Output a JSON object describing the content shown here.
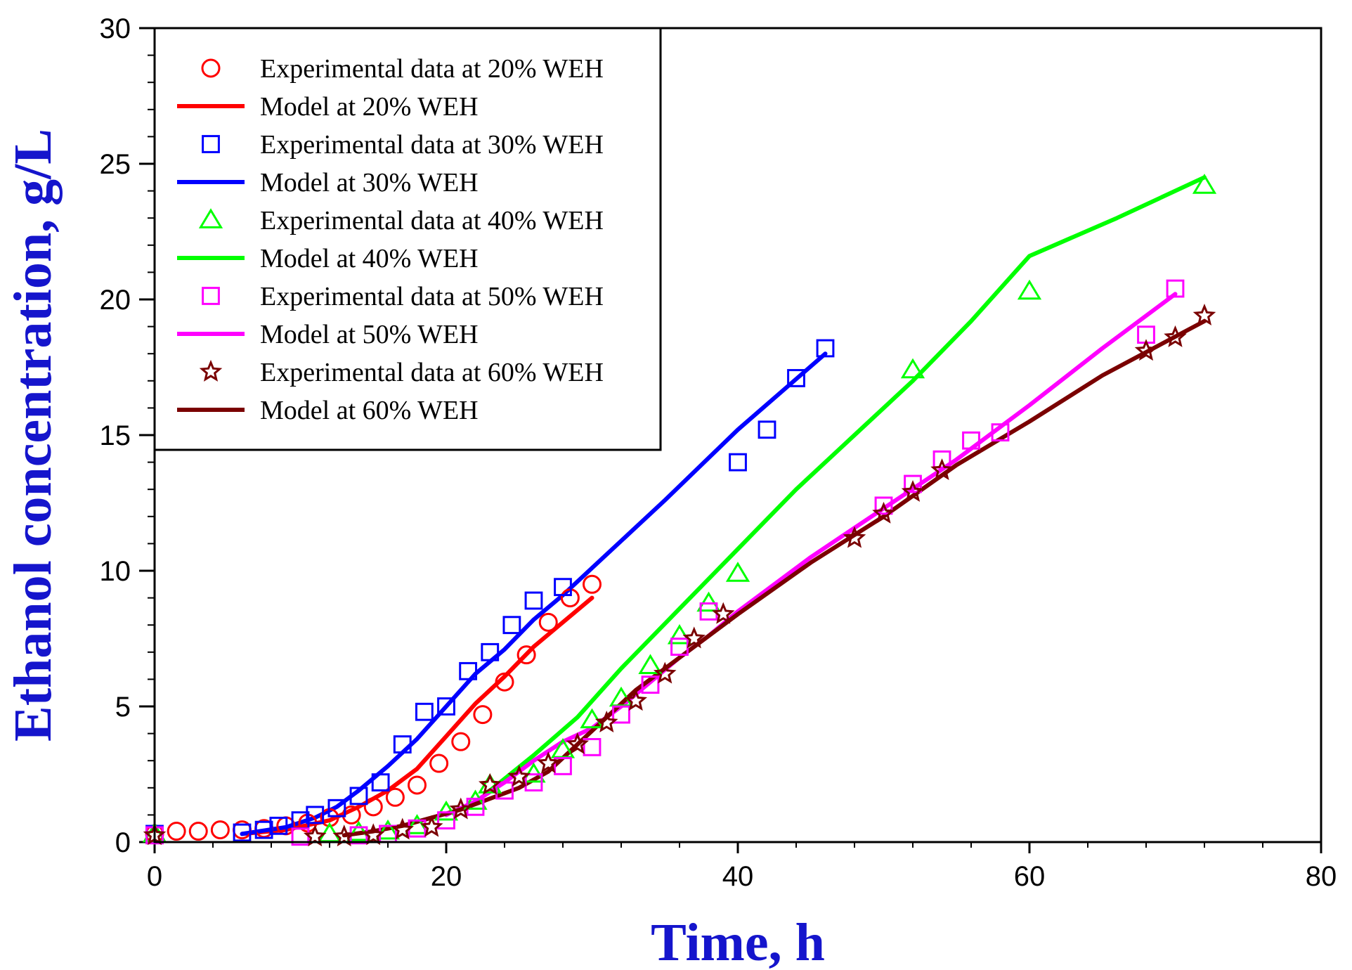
{
  "chart_data": {
    "type": "scatter",
    "title": "",
    "xlabel": "Time, h",
    "ylabel": "Ethanol concentration, g/L",
    "xlim": [
      0,
      80
    ],
    "ylim": [
      0,
      30
    ],
    "xticks": [
      0,
      20,
      40,
      60,
      80
    ],
    "yticks": [
      0,
      5,
      10,
      15,
      20,
      25,
      30
    ],
    "x_tick_labels": [
      "0",
      "20",
      "40",
      "60",
      "80"
    ],
    "y_tick_labels": [
      "0",
      "5",
      "10",
      "15",
      "20",
      "25",
      "30"
    ],
    "axis_title_color": "#1515cc",
    "legend_position": "top-left",
    "series": [
      {
        "name": "Experimental data at 20% WEH",
        "kind": "scatter",
        "marker": "circle",
        "color": "#ff0000",
        "points": [
          [
            0,
            0.3
          ],
          [
            1.5,
            0.4
          ],
          [
            3,
            0.4
          ],
          [
            4.5,
            0.45
          ],
          [
            6,
            0.45
          ],
          [
            7.5,
            0.5
          ],
          [
            9,
            0.6
          ],
          [
            10.5,
            0.7
          ],
          [
            12,
            0.9
          ],
          [
            13.5,
            1.0
          ],
          [
            15,
            1.3
          ],
          [
            16.5,
            1.65
          ],
          [
            18,
            2.1
          ],
          [
            19.5,
            2.9
          ],
          [
            21,
            3.7
          ],
          [
            22.5,
            4.7
          ],
          [
            24,
            5.9
          ],
          [
            25.5,
            6.9
          ],
          [
            27,
            8.1
          ],
          [
            28.5,
            9.0
          ],
          [
            30,
            9.5
          ]
        ]
      },
      {
        "name": "Model at 20% WEH",
        "kind": "line",
        "color": "#ff0000",
        "points": [
          [
            6,
            0.3
          ],
          [
            9,
            0.45
          ],
          [
            12,
            0.8
          ],
          [
            14,
            1.3
          ],
          [
            16,
            1.9
          ],
          [
            18,
            2.7
          ],
          [
            20,
            3.9
          ],
          [
            22,
            5.1
          ],
          [
            24,
            6.1
          ],
          [
            26,
            7.2
          ],
          [
            28,
            8.1
          ],
          [
            30,
            9.0
          ]
        ]
      },
      {
        "name": "Experimental data at 30% WEH",
        "kind": "scatter",
        "marker": "square",
        "color": "#0000ff",
        "points": [
          [
            0,
            0.3
          ],
          [
            6,
            0.35
          ],
          [
            7.5,
            0.45
          ],
          [
            8.5,
            0.6
          ],
          [
            10,
            0.8
          ],
          [
            11,
            1.0
          ],
          [
            12.5,
            1.25
          ],
          [
            14,
            1.7
          ],
          [
            15.5,
            2.2
          ],
          [
            17,
            3.6
          ],
          [
            18.5,
            4.8
          ],
          [
            20,
            5.0
          ],
          [
            21.5,
            6.3
          ],
          [
            23,
            7.0
          ],
          [
            24.5,
            8.0
          ],
          [
            26,
            8.9
          ],
          [
            28,
            9.4
          ],
          [
            40,
            14.0
          ],
          [
            42,
            15.2
          ],
          [
            44,
            17.1
          ],
          [
            46,
            18.2
          ]
        ]
      },
      {
        "name": "Model at 30% WEH",
        "kind": "line",
        "color": "#0000ff",
        "points": [
          [
            6,
            0.3
          ],
          [
            9,
            0.55
          ],
          [
            11,
            0.9
          ],
          [
            12.5,
            1.3
          ],
          [
            14,
            1.9
          ],
          [
            16,
            2.8
          ],
          [
            18,
            3.8
          ],
          [
            20,
            5.0
          ],
          [
            22,
            6.2
          ],
          [
            24,
            7.1
          ],
          [
            26,
            8.2
          ],
          [
            28,
            9.1
          ],
          [
            30,
            10.1
          ],
          [
            35,
            12.6
          ],
          [
            40,
            15.2
          ],
          [
            46,
            18.0
          ]
        ]
      },
      {
        "name": "Experimental data at 40% WEH",
        "kind": "scatter",
        "marker": "triangle",
        "color": "#00ff00",
        "points": [
          [
            0,
            0.3
          ],
          [
            12,
            0.3
          ],
          [
            14,
            0.35
          ],
          [
            16,
            0.4
          ],
          [
            18,
            0.6
          ],
          [
            20,
            1.1
          ],
          [
            22,
            1.5
          ],
          [
            23,
            2.1
          ],
          [
            26,
            2.5
          ],
          [
            28,
            3.4
          ],
          [
            30,
            4.5
          ],
          [
            32,
            5.3
          ],
          [
            34,
            6.5
          ],
          [
            36,
            7.6
          ],
          [
            38,
            8.8
          ],
          [
            40,
            9.9
          ],
          [
            52,
            17.4
          ],
          [
            60,
            20.3
          ],
          [
            72,
            24.2
          ]
        ]
      },
      {
        "name": "Model at 40% WEH",
        "kind": "line",
        "color": "#00ff00",
        "points": [
          [
            23,
            1.9
          ],
          [
            26,
            3.2
          ],
          [
            29,
            4.6
          ],
          [
            32,
            6.4
          ],
          [
            36,
            8.6
          ],
          [
            40,
            10.8
          ],
          [
            44,
            13.0
          ],
          [
            48,
            15.0
          ],
          [
            52,
            17.0
          ],
          [
            56,
            19.2
          ],
          [
            60,
            21.6
          ],
          [
            66,
            23.0
          ],
          [
            72,
            24.5
          ]
        ]
      },
      {
        "name": "Experimental data at 50% WEH",
        "kind": "scatter",
        "marker": "square",
        "color": "#ff00ff",
        "points": [
          [
            0,
            0.25
          ],
          [
            10,
            0.2
          ],
          [
            14,
            0.25
          ],
          [
            16,
            0.3
          ],
          [
            18,
            0.5
          ],
          [
            20,
            0.8
          ],
          [
            22,
            1.3
          ],
          [
            24,
            1.9
          ],
          [
            26,
            2.2
          ],
          [
            28,
            2.8
          ],
          [
            30,
            3.5
          ],
          [
            32,
            4.7
          ],
          [
            34,
            5.8
          ],
          [
            36,
            7.2
          ],
          [
            38,
            8.5
          ],
          [
            50,
            12.4
          ],
          [
            52,
            13.2
          ],
          [
            54,
            14.1
          ],
          [
            56,
            14.8
          ],
          [
            58,
            15.1
          ],
          [
            68,
            18.7
          ],
          [
            70,
            20.4
          ]
        ]
      },
      {
        "name": "Model at 50% WEH",
        "kind": "line",
        "color": "#ff00ff",
        "points": [
          [
            20,
            1.0
          ],
          [
            22,
            1.5
          ],
          [
            24,
            2.2
          ],
          [
            26,
            3.0
          ],
          [
            28,
            3.7
          ],
          [
            30,
            4.2
          ],
          [
            32,
            5.0
          ],
          [
            34,
            5.9
          ],
          [
            36,
            6.8
          ],
          [
            38,
            7.6
          ],
          [
            40,
            8.5
          ],
          [
            45,
            10.5
          ],
          [
            50,
            12.3
          ],
          [
            55,
            14.1
          ],
          [
            60,
            16.1
          ],
          [
            65,
            18.2
          ],
          [
            70,
            20.2
          ]
        ]
      },
      {
        "name": "Experimental data at 60% WEH",
        "kind": "scatter",
        "marker": "star",
        "color": "#7a0000",
        "points": [
          [
            0,
            0.25
          ],
          [
            11,
            0.2
          ],
          [
            13,
            0.2
          ],
          [
            15,
            0.25
          ],
          [
            17,
            0.45
          ],
          [
            19,
            0.55
          ],
          [
            21,
            1.2
          ],
          [
            23,
            2.1
          ],
          [
            25,
            2.4
          ],
          [
            27,
            2.9
          ],
          [
            29,
            3.6
          ],
          [
            31,
            4.4
          ],
          [
            33,
            5.2
          ],
          [
            35,
            6.2
          ],
          [
            37,
            7.5
          ],
          [
            39,
            8.4
          ],
          [
            48,
            11.2
          ],
          [
            50,
            12.1
          ],
          [
            52,
            12.9
          ],
          [
            54,
            13.7
          ],
          [
            68,
            18.1
          ],
          [
            70,
            18.6
          ],
          [
            72,
            19.4
          ]
        ]
      },
      {
        "name": "Model at 60% WEH",
        "kind": "line",
        "color": "#7a0000",
        "points": [
          [
            13,
            0.25
          ],
          [
            15,
            0.4
          ],
          [
            17,
            0.6
          ],
          [
            19,
            0.9
          ],
          [
            21,
            1.2
          ],
          [
            23,
            1.6
          ],
          [
            25,
            2.0
          ],
          [
            27,
            2.6
          ],
          [
            29,
            3.6
          ],
          [
            31,
            4.6
          ],
          [
            33,
            5.6
          ],
          [
            35,
            6.4
          ],
          [
            37,
            7.2
          ],
          [
            40,
            8.4
          ],
          [
            45,
            10.3
          ],
          [
            50,
            12.0
          ],
          [
            55,
            13.9
          ],
          [
            60,
            15.5
          ],
          [
            65,
            17.2
          ],
          [
            72,
            19.2
          ]
        ]
      }
    ]
  }
}
